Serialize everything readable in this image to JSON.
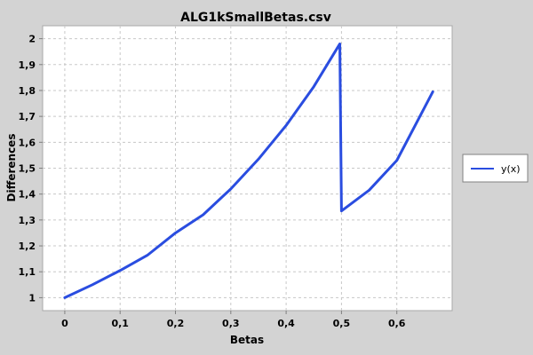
{
  "chart_data": {
    "type": "line",
    "title": "ALG1kSmallBetas.csv",
    "xlabel": "Betas",
    "ylabel": "Differences",
    "xlim": [
      -0.04,
      0.7
    ],
    "ylim": [
      0.95,
      2.05
    ],
    "x_ticks": [
      0,
      0.1,
      0.2,
      0.3,
      0.4,
      0.5,
      0.6
    ],
    "x_tick_labels": [
      "0",
      "0,1",
      "0,2",
      "0,3",
      "0,4",
      "0,5",
      "0,6"
    ],
    "y_ticks": [
      1,
      1.1,
      1.2,
      1.3,
      1.4,
      1.5,
      1.6,
      1.7,
      1.8,
      1.9,
      2
    ],
    "y_tick_labels": [
      "1",
      "1,1",
      "1,2",
      "1,3",
      "1,4",
      "1,5",
      "1,6",
      "1,7",
      "1,8",
      "1,9",
      "2"
    ],
    "grid": true,
    "legend_position": "right",
    "series": [
      {
        "name": "y(x)",
        "color": "#2a4de0",
        "x": [
          0.0,
          0.05,
          0.1,
          0.15,
          0.2,
          0.25,
          0.3,
          0.35,
          0.4,
          0.45,
          0.497,
          0.5,
          0.55,
          0.6,
          0.665
        ],
        "y": [
          1.0,
          1.05,
          1.105,
          1.165,
          1.25,
          1.32,
          1.42,
          1.535,
          1.665,
          1.815,
          1.98,
          1.335,
          1.415,
          1.53,
          1.795
        ]
      }
    ]
  }
}
